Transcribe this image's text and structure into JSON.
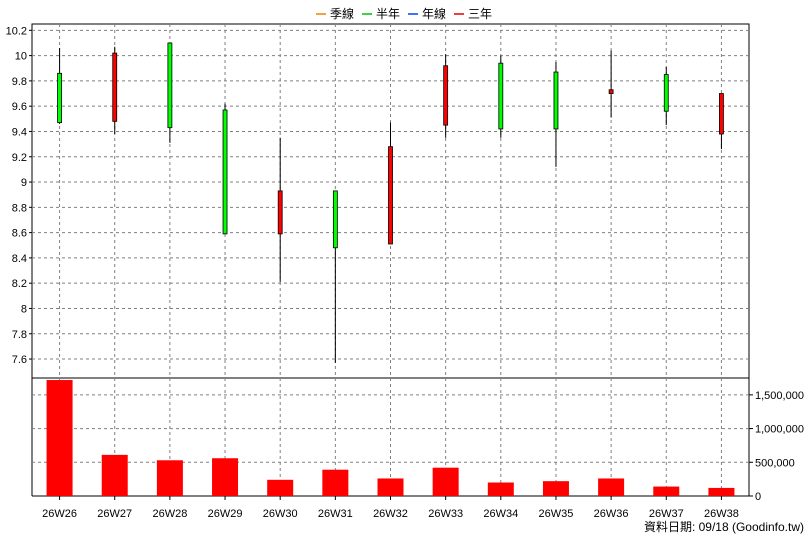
{
  "legend": [
    {
      "label": "季線",
      "color": "#f08000"
    },
    {
      "label": "半年",
      "color": "#00c000"
    },
    {
      "label": "年線",
      "color": "#0040ff"
    },
    {
      "label": "三年",
      "color": "#e00000"
    }
  ],
  "footer": "資料日期: 09/18  (Goodinfo.tw)",
  "colors": {
    "up": "#ff0000",
    "down": "#00ff00",
    "candle_border": "#000000",
    "volume": "#ff0000",
    "grid": "#808080"
  },
  "chart_data": [
    {
      "type": "candlestick",
      "categories": [
        "26W26",
        "26W27",
        "26W28",
        "26W29",
        "26W30",
        "26W31",
        "26W32",
        "26W33",
        "26W34",
        "26W35",
        "26W36",
        "26W37",
        "26W38"
      ],
      "open": [
        9.86,
        9.48,
        10.1,
        9.57,
        8.59,
        8.93,
        8.51,
        9.45,
        9.94,
        9.87,
        9.7,
        9.85,
        9.38
      ],
      "high": [
        10.06,
        10.07,
        10.1,
        9.62,
        9.35,
        8.93,
        9.47,
        10.01,
        10.0,
        9.95,
        10.04,
        9.91,
        9.7
      ],
      "low": [
        9.46,
        9.38,
        9.31,
        8.59,
        8.21,
        7.57,
        8.51,
        9.35,
        9.35,
        9.12,
        9.51,
        9.45,
        9.26
      ],
      "close": [
        9.47,
        10.02,
        9.43,
        8.59,
        8.93,
        8.48,
        9.28,
        9.92,
        9.42,
        9.42,
        9.73,
        9.56,
        9.7
      ],
      "ylim": [
        7.45,
        10.25
      ],
      "yticks": [
        7.6,
        7.8,
        8,
        8.2,
        8.4,
        8.6,
        8.8,
        9,
        9.2,
        9.4,
        9.6,
        9.8,
        10,
        10.2
      ],
      "grid": true,
      "legend_position": "top-center"
    },
    {
      "type": "bar",
      "categories": [
        "26W26",
        "26W27",
        "26W28",
        "26W29",
        "26W30",
        "26W31",
        "26W32",
        "26W33",
        "26W34",
        "26W35",
        "26W36",
        "26W37",
        "26W38"
      ],
      "values": [
        1720000,
        610000,
        530000,
        560000,
        240000,
        390000,
        260000,
        420000,
        200000,
        220000,
        260000,
        140000,
        120000
      ],
      "ylim": [
        0,
        1750000
      ],
      "yticks": [
        0,
        500000,
        1000000,
        1500000
      ],
      "ytick_labels": [
        "0",
        "500,000",
        "1,000,000",
        "1,500,000"
      ],
      "grid": true
    }
  ]
}
